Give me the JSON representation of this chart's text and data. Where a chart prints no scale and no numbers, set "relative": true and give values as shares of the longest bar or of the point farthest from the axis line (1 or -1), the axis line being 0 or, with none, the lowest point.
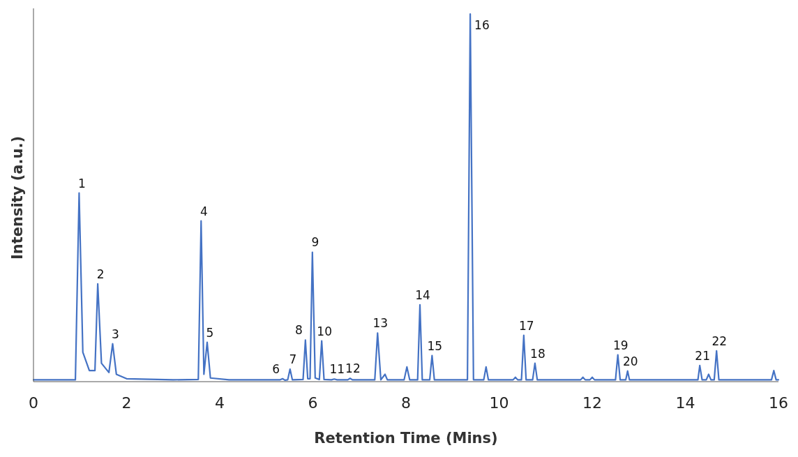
{
  "chart_data": {
    "type": "line",
    "xlabel": "Retention Time (Mins)",
    "ylabel": "Intensity (a.u.)",
    "relative": true,
    "xlim": [
      0,
      16
    ],
    "xticks": [
      0,
      2,
      4,
      6,
      8,
      10,
      12,
      14,
      16
    ],
    "grid": false,
    "marker": "none",
    "line_style": "solid",
    "x": [
      0,
      0.9,
      0.98,
      1.06,
      1.2,
      1.32,
      1.38,
      1.46,
      1.62,
      1.7,
      1.78,
      2,
      3,
      3.54,
      3.6,
      3.66,
      3.73,
      3.8,
      4.2,
      5.3,
      5.35,
      5.4,
      5.46,
      5.51,
      5.56,
      5.79,
      5.84,
      5.89,
      5.94,
      5.99,
      6.05,
      6.14,
      6.19,
      6.24,
      6.4,
      6.46,
      6.52,
      6.75,
      6.8,
      6.85,
      7.33,
      7.39,
      7.46,
      7.55,
      7.6,
      7.96,
      8.02,
      8.08,
      8.25,
      8.3,
      8.35,
      8.51,
      8.56,
      8.61,
      9.32,
      9.38,
      9.45,
      9.67,
      9.72,
      9.77,
      10.3,
      10.35,
      10.4,
      10.48,
      10.53,
      10.58,
      10.72,
      10.77,
      10.82,
      11.75,
      11.8,
      11.85,
      11.95,
      12,
      12.05,
      12.5,
      12.55,
      12.6,
      12.72,
      12.76,
      12.8,
      14.27,
      14.31,
      14.36,
      14.45,
      14.5,
      14.55,
      14.62,
      14.67,
      14.72,
      15.85,
      15.9,
      15.95,
      16
    ],
    "series": [
      {
        "color": "#4472c4",
        "values": [
          0.005,
          0.005,
          0.513,
          0.08,
          0.03,
          0.03,
          0.266,
          0.05,
          0.025,
          0.103,
          0.02,
          0.008,
          0.005,
          0.006,
          0.437,
          0.02,
          0.107,
          0.01,
          0.005,
          0.005,
          0.008,
          0.004,
          0.005,
          0.034,
          0.005,
          0.006,
          0.113,
          0.008,
          0.008,
          0.352,
          0.01,
          0.006,
          0.111,
          0.006,
          0.005,
          0.007,
          0.005,
          0.005,
          0.009,
          0.005,
          0.005,
          0.132,
          0.005,
          0.02,
          0.005,
          0.005,
          0.04,
          0.005,
          0.005,
          0.209,
          0.005,
          0.005,
          0.071,
          0.005,
          0.005,
          1.0,
          0.005,
          0.005,
          0.04,
          0.005,
          0.005,
          0.012,
          0.005,
          0.005,
          0.126,
          0.005,
          0.005,
          0.05,
          0.005,
          0.005,
          0.012,
          0.005,
          0.005,
          0.012,
          0.005,
          0.005,
          0.073,
          0.005,
          0.005,
          0.029,
          0.005,
          0.005,
          0.044,
          0.005,
          0.005,
          0.02,
          0.005,
          0.005,
          0.084,
          0.005,
          0.005,
          0.03,
          0.005,
          0.005
        ]
      }
    ],
    "annotations": [
      {
        "text": "1",
        "x": 0.98,
        "y": 0.513
      },
      {
        "text": "2",
        "x": 1.38,
        "y": 0.266
      },
      {
        "text": "3",
        "x": 1.7,
        "y": 0.103
      },
      {
        "text": "4",
        "x": 3.6,
        "y": 0.437
      },
      {
        "text": "5",
        "x": 3.73,
        "y": 0.107
      },
      {
        "text": "6",
        "x": 5.35,
        "y": 0.008
      },
      {
        "text": "7",
        "x": 5.51,
        "y": 0.034
      },
      {
        "text": "8",
        "x": 5.84,
        "y": 0.113
      },
      {
        "text": "9",
        "x": 5.99,
        "y": 0.352
      },
      {
        "text": "10",
        "x": 6.19,
        "y": 0.111
      },
      {
        "text": "11",
        "x": 6.46,
        "y": 0.007
      },
      {
        "text": "12",
        "x": 6.8,
        "y": 0.009
      },
      {
        "text": "13",
        "x": 7.39,
        "y": 0.132
      },
      {
        "text": "14",
        "x": 8.3,
        "y": 0.209
      },
      {
        "text": "15",
        "x": 8.56,
        "y": 0.071
      },
      {
        "text": "16",
        "x": 9.38,
        "y": 1.0
      },
      {
        "text": "17",
        "x": 10.53,
        "y": 0.126
      },
      {
        "text": "18",
        "x": 10.77,
        "y": 0.05
      },
      {
        "text": "19",
        "x": 12.55,
        "y": 0.073
      },
      {
        "text": "20",
        "x": 12.76,
        "y": 0.029
      },
      {
        "text": "21",
        "x": 14.31,
        "y": 0.044
      },
      {
        "text": "22",
        "x": 14.67,
        "y": 0.084
      }
    ]
  }
}
